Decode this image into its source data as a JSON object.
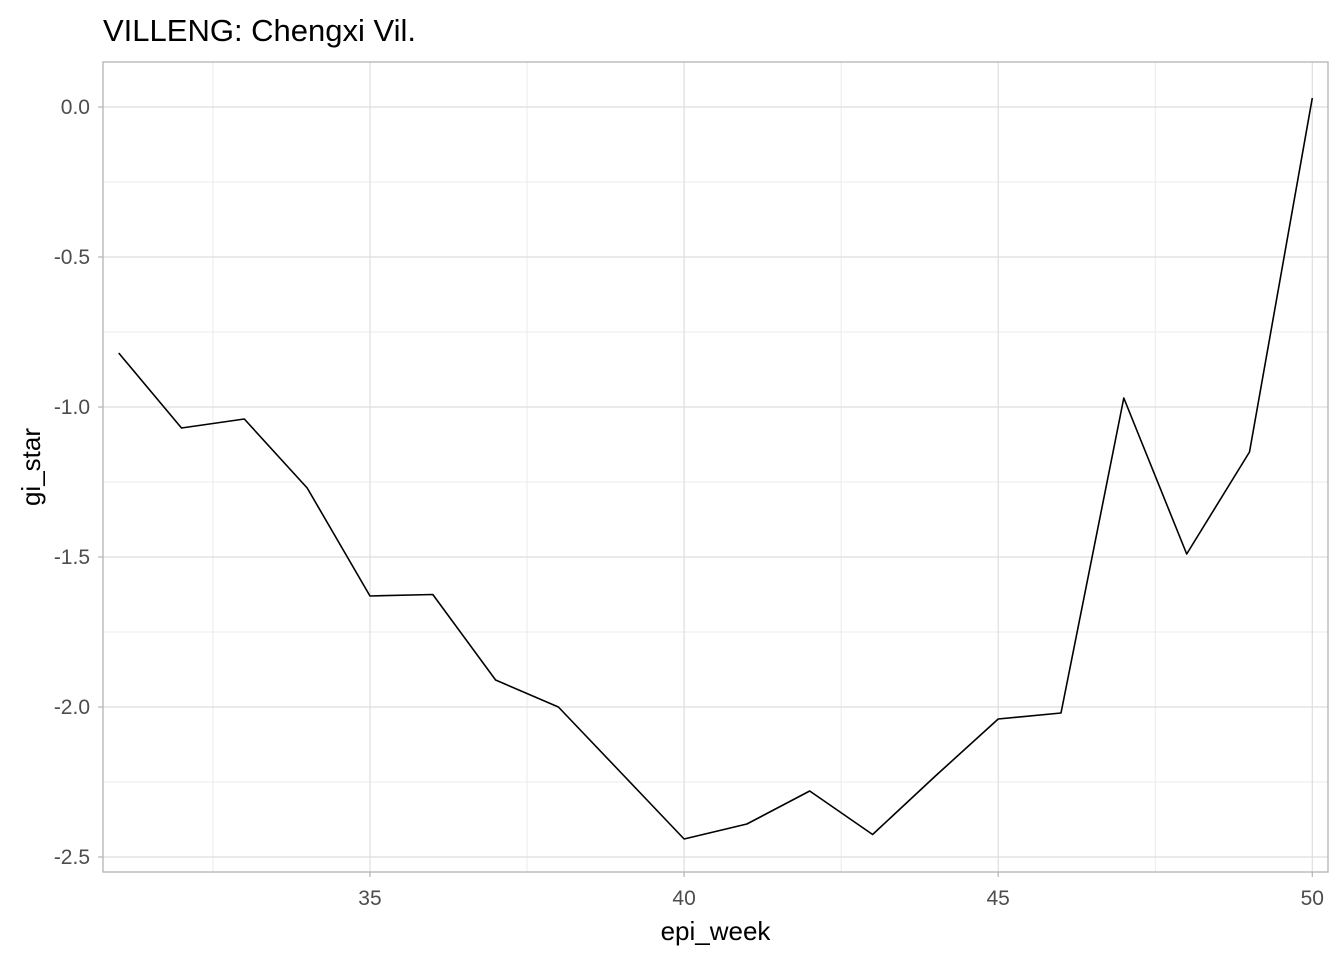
{
  "chart_data": {
    "type": "line",
    "title": "VILLENG: Chengxi Vil.",
    "xlabel": "epi_week",
    "ylabel": "gi_star",
    "xlim": [
      30.75,
      50.25
    ],
    "ylim": [
      -2.55,
      0.15
    ],
    "x_ticks": [
      35,
      40,
      45,
      50
    ],
    "x_tick_labels": [
      "35",
      "40",
      "45",
      "50"
    ],
    "x_minor_ticks": [
      32.5,
      37.5,
      42.5,
      47.5
    ],
    "y_ticks": [
      0.0,
      -0.5,
      -1.0,
      -1.5,
      -2.0,
      -2.5
    ],
    "y_tick_labels": [
      "0.0",
      "-0.5",
      "-1.0",
      "-1.5",
      "-2.0",
      "-2.5"
    ],
    "y_minor_ticks": [
      -0.25,
      -0.75,
      -1.25,
      -1.75,
      -2.25
    ],
    "grid": true,
    "series": [
      {
        "x": [
          31,
          32,
          33,
          34,
          35,
          36,
          37,
          38,
          39,
          40,
          41,
          42,
          43,
          44,
          45,
          46,
          47,
          48,
          49,
          50
        ],
        "y": [
          -0.82,
          -1.07,
          -1.04,
          -1.27,
          -1.63,
          -1.625,
          -1.91,
          -2.0,
          -2.22,
          -2.44,
          -2.39,
          -2.28,
          -2.425,
          -2.23,
          -2.04,
          -2.02,
          -0.97,
          -1.49,
          -1.15,
          0.03
        ],
        "color": "#000000"
      }
    ]
  }
}
